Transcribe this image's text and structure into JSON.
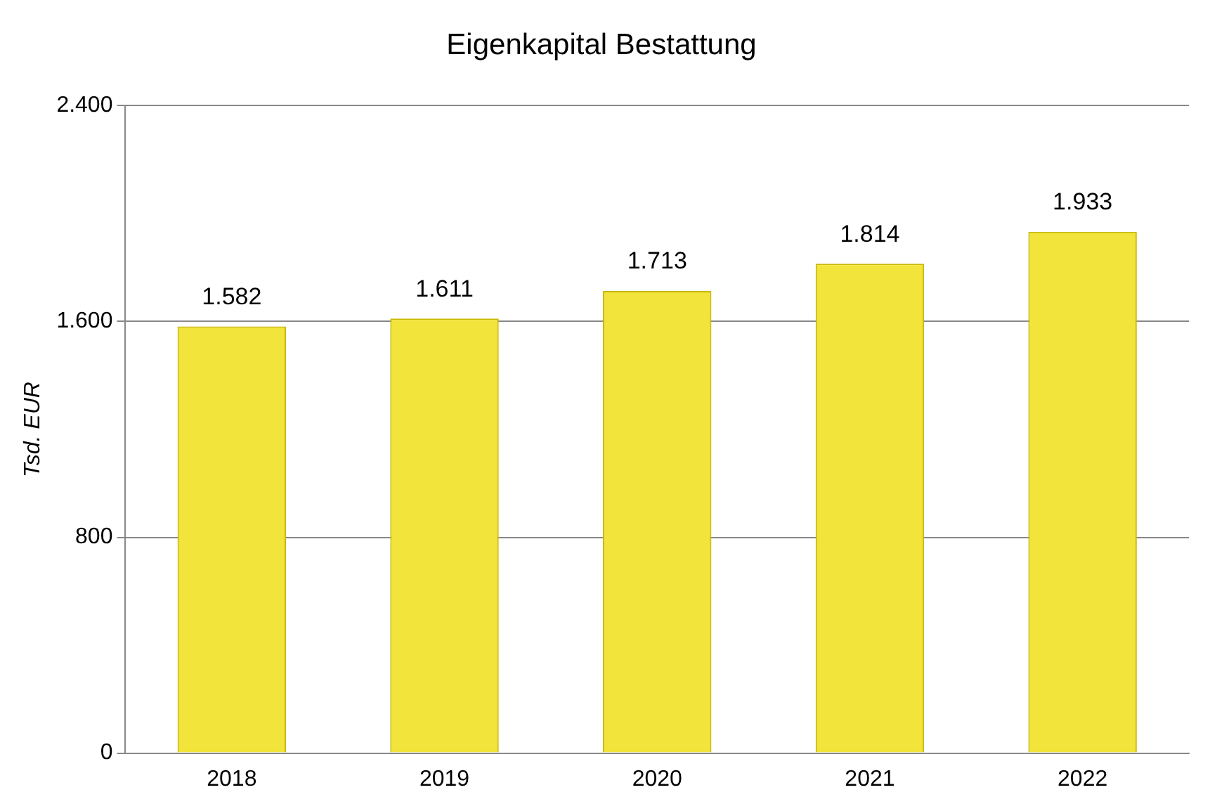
{
  "chart_data": {
    "type": "bar",
    "title": "Eigenkapital Bestattung",
    "ylabel": "Tsd. EUR",
    "categories": [
      "2018",
      "2019",
      "2020",
      "2021",
      "2022"
    ],
    "values": [
      1582,
      1611,
      1713,
      1814,
      1933
    ],
    "value_labels": [
      "1.582",
      "1.611",
      "1.713",
      "1.814",
      "1.933"
    ],
    "color": "#f2e43a",
    "ylim": [
      0,
      2400
    ],
    "yticks": [
      {
        "value": 0,
        "label": "0"
      },
      {
        "value": 800,
        "label": "800"
      },
      {
        "value": 1600,
        "label": "1.600"
      },
      {
        "value": 2400,
        "label": "2.400"
      }
    ],
    "grid": "y",
    "legend": false
  }
}
